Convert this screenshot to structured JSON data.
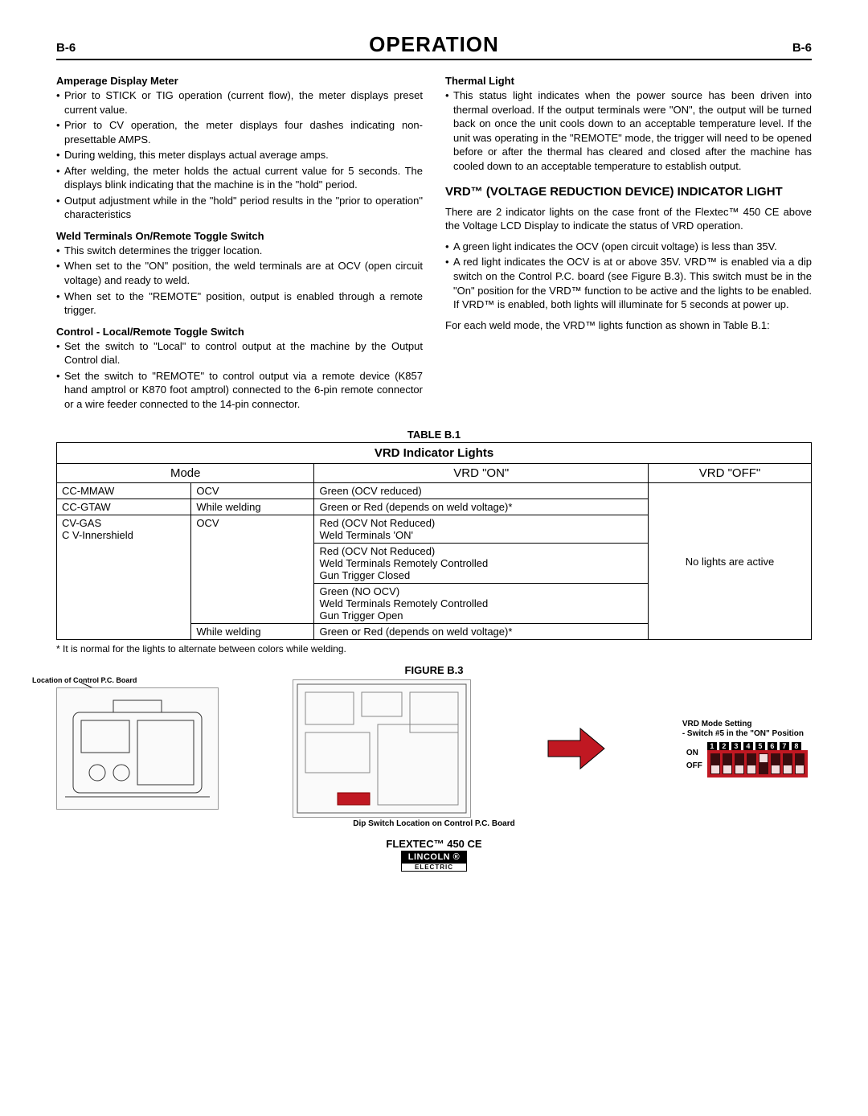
{
  "header": {
    "left": "B-6",
    "title": "OPERATION",
    "right": "B-6"
  },
  "left_col": {
    "s1": {
      "h": "Amperage Display Meter",
      "items": [
        "Prior to STICK or TIG operation (current flow), the meter displays preset current value.",
        "Prior to CV operation, the meter displays four dashes indicating non-presettable AMPS.",
        "During welding, this meter displays actual average amps.",
        "After welding, the meter holds the actual current value for 5 seconds.  The displays blink indicating that the machine is in the \"hold\" period.",
        "Output adjustment while in the \"hold\" period results in the \"prior to operation\" characteristics"
      ]
    },
    "s2": {
      "h": "Weld Terminals On/Remote Toggle Switch",
      "items": [
        "This switch determines the trigger location.",
        "When set to the \"ON\" position, the weld terminals are at OCV (open circuit voltage) and ready to weld.",
        "When set to the \"REMOTE\" position, output is enabled through a remote trigger."
      ]
    },
    "s3": {
      "h": "Control - Local/Remote Toggle Switch",
      "items": [
        "Set the switch to \"Local\" to control output at the machine by the Output Control dial.",
        "Set the switch to \"REMOTE\" to control output via a remote device (K857 hand amptrol or K870 foot amptrol) connected to the 6-pin remote connector or a wire feeder connected to the 14-pin connector."
      ]
    }
  },
  "right_col": {
    "s1": {
      "h": "Thermal Light",
      "items": [
        "This status light indicates when the power source has been driven into thermal overload. If the output terminals were \"ON\", the output will be turned back on once the unit cools down to an acceptable temperature level. If the unit was operating in the \"REMOTE\" mode, the trigger will need to be opened before or after the thermal has cleared and closed after the machine has cooled down to an acceptable temperature to establish output."
      ]
    },
    "vrd_h": "VRD™ (VOLTAGE REDUCTION DEVICE) INDICATOR LIGHT",
    "vrd_p1": "There are 2 indicator lights on the case front of the Flextec™ 450 CE above the Voltage LCD Display to indicate the status of VRD operation.",
    "vrd_items": [
      "A green light indicates the OCV (open circuit voltage) is less than 35V.",
      "A red light indicates the OCV is at or above 35V. VRD™ is enabled via a dip switch on the Control P.C. board (see Figure B.3). This switch must be in the \"On\" position for the VRD™ function to be active and the lights to be enabled. If VRD™ is enabled, both lights will illuminate for 5 seconds at power up."
    ],
    "vrd_p2": "For each weld mode, the VRD™ lights function as shown in Table B.1:"
  },
  "table": {
    "label": "TABLE B.1",
    "title": "VRD Indicator Lights",
    "h_mode": "Mode",
    "h_on": "VRD \"ON\"",
    "h_off": "VRD \"OFF\"",
    "rows": {
      "r1c1": "CC-MMAW",
      "r1c2": "OCV",
      "r1c3": "Green (OCV reduced)",
      "r2c1": "CC-GTAW",
      "r2c2": "While welding",
      "r2c3": "Green or Red (depends on weld voltage)*",
      "r3c1": "CV-GAS\nC V-Innershield",
      "r3c2": "OCV",
      "r3c3a": "Red (OCV Not Reduced)\nWeld Terminals 'ON'",
      "r3c3b": "Red (OCV Not Reduced)\nWeld Terminals Remotely Controlled\nGun Trigger Closed",
      "r3c3c": "Green (NO OCV)\nWeld Terminals Remotely Controlled\nGun Trigger Open",
      "r4c2": "While welding",
      "r4c3": "Green or Red (depends on weld voltage)*",
      "off": "No lights are active"
    },
    "footnote": "* It is normal for the lights to alternate between colors while welding."
  },
  "figure": {
    "label": "FIGURE B.3",
    "loc_label": "Location of Control P.C. Board",
    "dip_caption": "VRD Mode Setting\n - Switch #5 in the \"ON\" Position",
    "dip_bottom": "Dip Switch Location on Control P.C. Board",
    "on": "ON",
    "off": "OFF",
    "switches": [
      {
        "n": "1",
        "on": false
      },
      {
        "n": "2",
        "on": false
      },
      {
        "n": "3",
        "on": false
      },
      {
        "n": "4",
        "on": false
      },
      {
        "n": "5",
        "on": true
      },
      {
        "n": "6",
        "on": false
      },
      {
        "n": "7",
        "on": false
      },
      {
        "n": "8",
        "on": false
      }
    ],
    "dip_color": "#c01822"
  },
  "footer": {
    "product": "FLEXTEC™ 450 CE",
    "brand": "LINCOLN",
    "brand_sub": "ELECTRIC"
  }
}
